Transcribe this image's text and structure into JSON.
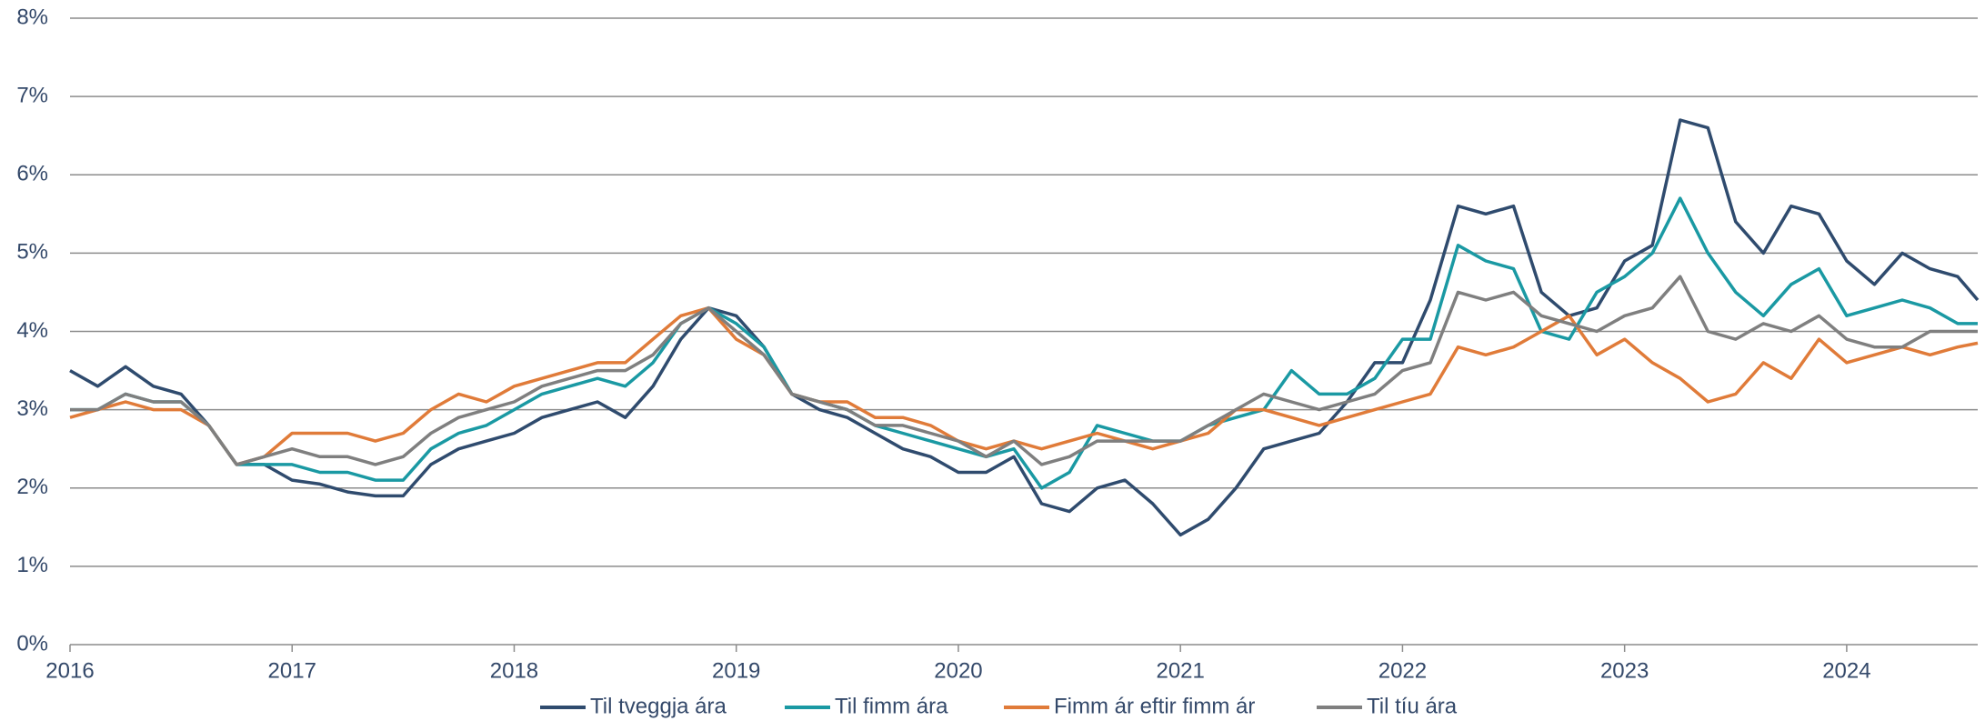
{
  "chart_data": {
    "type": "line",
    "x": [
      2016,
      2016.125,
      2016.25,
      2016.375,
      2016.5,
      2016.625,
      2016.75,
      2016.875,
      2017,
      2017.125,
      2017.25,
      2017.375,
      2017.5,
      2017.625,
      2017.75,
      2017.875,
      2018,
      2018.125,
      2018.25,
      2018.375,
      2018.5,
      2018.625,
      2018.75,
      2018.875,
      2019,
      2019.125,
      2019.25,
      2019.375,
      2019.5,
      2019.625,
      2019.75,
      2019.875,
      2020,
      2020.125,
      2020.25,
      2020.375,
      2020.5,
      2020.625,
      2020.75,
      2020.875,
      2021,
      2021.125,
      2021.25,
      2021.375,
      2021.5,
      2021.625,
      2021.75,
      2021.875,
      2022,
      2022.125,
      2022.25,
      2022.375,
      2022.5,
      2022.625,
      2022.75,
      2022.875,
      2023,
      2023.125,
      2023.25,
      2023.375,
      2023.5,
      2023.625,
      2023.75,
      2023.875,
      2024,
      2024.125,
      2024.25,
      2024.375,
      2024.5,
      2024.59
    ],
    "series": [
      {
        "name": "Til tveggja ára",
        "color": "#2f4b6e",
        "values": [
          3.5,
          3.3,
          3.55,
          3.3,
          3.2,
          2.8,
          2.3,
          2.3,
          2.1,
          2.05,
          1.95,
          1.9,
          1.9,
          2.3,
          2.5,
          2.6,
          2.7,
          2.9,
          3.0,
          3.1,
          2.9,
          3.3,
          3.9,
          4.3,
          4.2,
          3.8,
          3.2,
          3.0,
          2.9,
          2.7,
          2.5,
          2.4,
          2.2,
          2.2,
          2.4,
          1.8,
          1.7,
          2.0,
          2.1,
          1.8,
          1.4,
          1.6,
          2.0,
          2.5,
          2.6,
          2.7,
          3.1,
          3.6,
          3.6,
          4.4,
          5.6,
          5.5,
          5.6,
          4.5,
          4.2,
          4.3,
          4.9,
          5.1,
          6.7,
          6.6,
          5.4,
          5.0,
          5.6,
          5.5,
          4.9,
          4.6,
          5.0,
          4.8,
          4.7,
          4.4
        ]
      },
      {
        "name": "Til fimm ára",
        "color": "#1a99a3",
        "values": [
          3.0,
          3.0,
          3.2,
          3.1,
          3.1,
          2.8,
          2.3,
          2.3,
          2.3,
          2.2,
          2.2,
          2.1,
          2.1,
          2.5,
          2.7,
          2.8,
          3.0,
          3.2,
          3.3,
          3.4,
          3.3,
          3.6,
          4.1,
          4.3,
          4.1,
          3.8,
          3.2,
          3.1,
          3.0,
          2.8,
          2.7,
          2.6,
          2.5,
          2.4,
          2.5,
          2.0,
          2.2,
          2.8,
          2.7,
          2.6,
          2.6,
          2.8,
          2.9,
          3.0,
          3.5,
          3.2,
          3.2,
          3.4,
          3.9,
          3.9,
          5.1,
          4.9,
          4.8,
          4.0,
          3.9,
          4.5,
          4.7,
          5.0,
          5.7,
          5.0,
          4.5,
          4.2,
          4.6,
          4.8,
          4.2,
          4.3,
          4.4,
          4.3,
          4.1,
          4.1
        ]
      },
      {
        "name": "Fimm ár eftir fimm ár",
        "color": "#e07b39",
        "values": [
          2.9,
          3.0,
          3.1,
          3.0,
          3.0,
          2.8,
          2.3,
          2.4,
          2.7,
          2.7,
          2.7,
          2.6,
          2.7,
          3.0,
          3.2,
          3.1,
          3.3,
          3.4,
          3.5,
          3.6,
          3.6,
          3.9,
          4.2,
          4.3,
          3.9,
          3.7,
          3.2,
          3.1,
          3.1,
          2.9,
          2.9,
          2.8,
          2.6,
          2.5,
          2.6,
          2.5,
          2.6,
          2.7,
          2.6,
          2.5,
          2.6,
          2.7,
          3.0,
          3.0,
          2.9,
          2.8,
          2.9,
          3.0,
          3.1,
          3.2,
          3.8,
          3.7,
          3.8,
          4.0,
          4.2,
          3.7,
          3.9,
          3.6,
          3.4,
          3.1,
          3.2,
          3.6,
          3.4,
          3.9,
          3.6,
          3.7,
          3.8,
          3.7,
          3.8,
          3.85
        ]
      },
      {
        "name": "Til tíu ára",
        "color": "#7f7f7f",
        "values": [
          3.0,
          3.0,
          3.2,
          3.1,
          3.1,
          2.8,
          2.3,
          2.4,
          2.5,
          2.4,
          2.4,
          2.3,
          2.4,
          2.7,
          2.9,
          3.0,
          3.1,
          3.3,
          3.4,
          3.5,
          3.5,
          3.7,
          4.1,
          4.3,
          4.0,
          3.7,
          3.2,
          3.1,
          3.0,
          2.8,
          2.8,
          2.7,
          2.6,
          2.4,
          2.6,
          2.3,
          2.4,
          2.6,
          2.6,
          2.6,
          2.6,
          2.8,
          3.0,
          3.2,
          3.1,
          3.0,
          3.1,
          3.2,
          3.5,
          3.6,
          4.5,
          4.4,
          4.5,
          4.2,
          4.1,
          4.0,
          4.2,
          4.3,
          4.7,
          4.0,
          3.9,
          4.1,
          4.0,
          4.2,
          3.9,
          3.8,
          3.8,
          4.0,
          4.0,
          4.0
        ]
      }
    ],
    "xlim": [
      2016,
      2024.59
    ],
    "xticks": [
      2016,
      2017,
      2018,
      2019,
      2020,
      2021,
      2022,
      2023,
      2024
    ],
    "ylim": [
      0,
      8
    ],
    "yticks": [
      {
        "value": 0,
        "label": "0%"
      },
      {
        "value": 1,
        "label": "1%"
      },
      {
        "value": 2,
        "label": "2%"
      },
      {
        "value": 3,
        "label": "3%"
      },
      {
        "value": 4,
        "label": "4%"
      },
      {
        "value": 5,
        "label": "5%"
      },
      {
        "value": 6,
        "label": "6%"
      },
      {
        "value": 7,
        "label": "7%"
      },
      {
        "value": 8,
        "label": "8%"
      }
    ],
    "grid": true,
    "legend": "bottom"
  }
}
